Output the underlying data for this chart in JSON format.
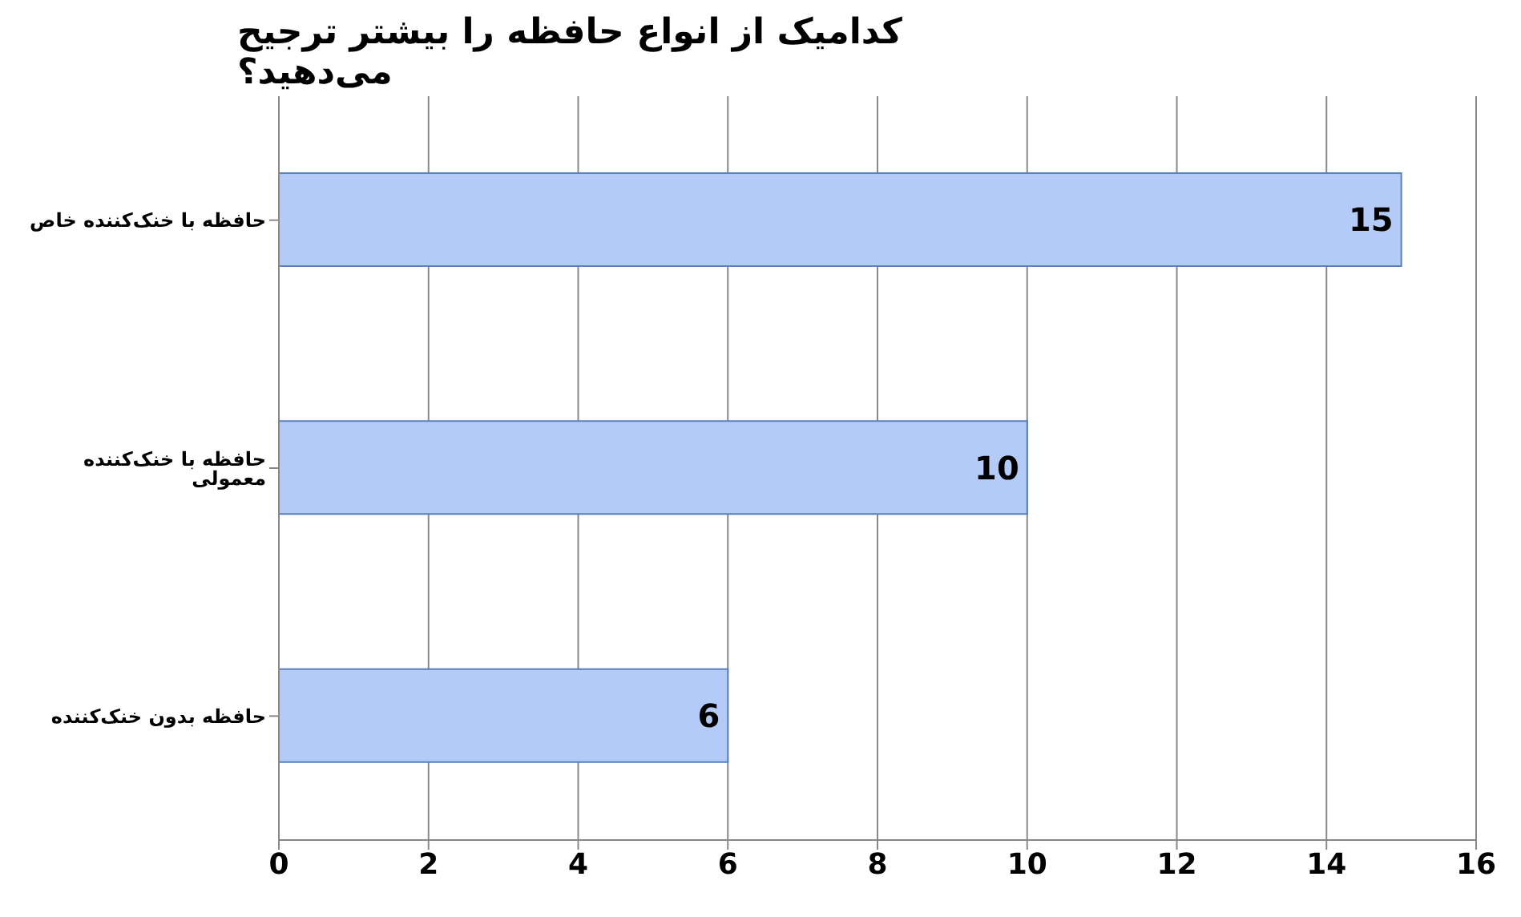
{
  "chart_data": {
    "type": "bar",
    "orientation": "horizontal",
    "title": "کدامیک از انواع حافظه را بیشتر ترجیح می‌دهید؟",
    "categories": [
      "حافظه با خنک‌کننده خاص",
      "حافظه با خنک‌کننده معمولی",
      "حافظه بدون خنک‌کننده"
    ],
    "values": [
      15,
      10,
      6
    ],
    "color": "#b3cbf6",
    "xlim": [
      0,
      16
    ],
    "xticks": [
      0,
      2,
      4,
      6,
      8,
      10,
      12,
      14,
      16
    ],
    "grid": "x",
    "data_labels": true
  }
}
